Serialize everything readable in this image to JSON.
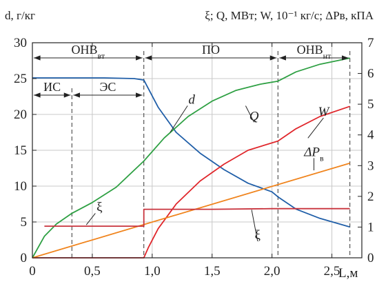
{
  "chart_data": {
    "type": "line",
    "left_axis_label": "d, г/кг",
    "right_axis_label": "ξ; Q, МВт; W, 10⁻¹ кг/с; ΔPв, кПА",
    "xlabel": "L,м",
    "xlim": [
      0,
      2.75
    ],
    "ylim_left": [
      0,
      30
    ],
    "ylim_right": [
      0,
      7
    ],
    "x_ticks": [
      "0",
      "0,5",
      "1,0",
      "1,5",
      "2,0",
      "2,5"
    ],
    "y_left_ticks": [
      "0",
      "5",
      "10",
      "15",
      "20",
      "25",
      "30"
    ],
    "y_right_ticks": [
      "0",
      "1",
      "2",
      "3",
      "4",
      "5",
      "6",
      "7"
    ],
    "grid": true,
    "series": [
      {
        "name": "d",
        "axis": "left",
        "color": "#1f5ea8",
        "x": [
          0,
          0.3,
          0.6,
          0.85,
          0.93,
          1.05,
          1.2,
          1.4,
          1.6,
          1.8,
          2.0,
          2.05,
          2.2,
          2.4,
          2.65
        ],
        "y": [
          25.1,
          25.1,
          25.1,
          25.0,
          24.8,
          21.0,
          17.5,
          14.6,
          12.3,
          10.4,
          9.2,
          8.5,
          6.8,
          5.5,
          4.3
        ]
      },
      {
        "name": "Q",
        "axis": "right",
        "color": "#2ea043",
        "x": [
          0,
          0.1,
          0.2,
          0.33,
          0.5,
          0.7,
          0.93,
          1.1,
          1.3,
          1.5,
          1.7,
          1.9,
          2.05,
          2.2,
          2.4,
          2.65
        ],
        "y": [
          0,
          0.7,
          1.1,
          1.45,
          1.8,
          2.3,
          3.15,
          3.9,
          4.6,
          5.1,
          5.45,
          5.65,
          5.75,
          6.05,
          6.3,
          6.5
        ]
      },
      {
        "name": "W",
        "axis": "right",
        "color": "#e0262b",
        "x": [
          0,
          0.5,
          0.93,
          0.97,
          1.05,
          1.2,
          1.4,
          1.6,
          1.8,
          2.05,
          2.2,
          2.4,
          2.65
        ],
        "y": [
          0,
          0,
          0,
          0.35,
          0.95,
          1.75,
          2.5,
          3.05,
          3.5,
          3.8,
          4.2,
          4.6,
          4.93
        ]
      },
      {
        "name": "ΔPв",
        "axis": "right",
        "color": "#f0841d",
        "x": [
          0,
          2.65
        ],
        "y": [
          0,
          3.08
        ]
      },
      {
        "name": "ξ",
        "axis": "right",
        "color": "#c8323c",
        "x": [
          0.1,
          0.93,
          0.93,
          1.5,
          2.0,
          2.3,
          2.65
        ],
        "y": [
          1.03,
          1.03,
          1.58,
          1.58,
          1.6,
          1.6,
          1.6
        ]
      }
    ],
    "zones": [
      {
        "label": "ОНВ",
        "sub": "вт",
        "x_from": 0,
        "x_to": 0.93
      },
      {
        "label": "ПО",
        "sub": "",
        "x_from": 0.93,
        "x_to": 2.05
      },
      {
        "label": "ОНВ",
        "sub": "нт",
        "x_from": 2.05,
        "x_to": 2.65
      },
      {
        "label": "ИС",
        "sub": "",
        "x_from": 0,
        "x_to": 0.33
      },
      {
        "label": "ЭС",
        "sub": "",
        "x_from": 0.33,
        "x_to": 0.93
      }
    ],
    "boundaries": [
      0.33,
      0.93,
      2.05,
      2.65
    ],
    "curve_labels": [
      {
        "text": "d",
        "x": 1.33,
        "y": 21.5
      },
      {
        "text": "Q",
        "x": 1.85,
        "y": 19.2
      },
      {
        "text": "W",
        "x": 2.43,
        "y": 19.8
      },
      {
        "text": "ΔP",
        "sub": "в",
        "x": 2.35,
        "y": 14.2
      },
      {
        "text": "ξ",
        "x": 0.56,
        "y": 6.5
      },
      {
        "text": "ξ",
        "x": 1.88,
        "y": 2.6
      }
    ]
  }
}
